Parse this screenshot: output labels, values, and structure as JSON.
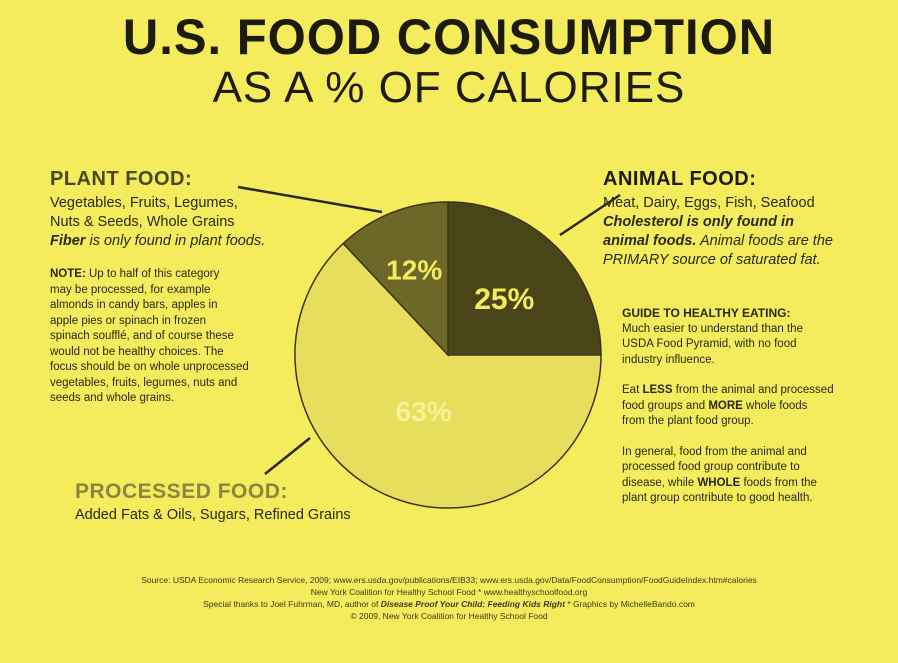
{
  "title": {
    "line1": "U.S. FOOD CONSUMPTION",
    "line2": "AS A % OF CALORIES"
  },
  "plant": {
    "heading": "PLANT FOOD:",
    "line1": "Vegetables, Fruits, Legumes,",
    "line2": "Nuts & Seeds, Whole Grains",
    "fiber_bold": "Fiber",
    "fiber_rest": " is only found in plant foods.",
    "note_label": "NOTE:",
    "note_lines": [
      " Up to half of this category",
      "may be processed, for example",
      "almonds in candy bars, apples in",
      "apple pies or spinach in frozen",
      "spinach soufflé, and of course these",
      "would not be healthy choices. The",
      "focus should be on whole unprocessed",
      "vegetables, fruits, legumes, nuts and",
      "seeds and whole grains."
    ]
  },
  "animal": {
    "heading": "ANIMAL FOOD:",
    "line1": "Meat, Dairy, Eggs, Fish, Seafood",
    "chol_bold": "Cholesterol",
    "chol_rest": " is only found in",
    "line3": "animal foods.",
    "line3_rest": " Animal foods are the",
    "line4": "PRIMARY source of saturated fat."
  },
  "guide": {
    "heading": "GUIDE TO HEALTHY EATING:",
    "p1": [
      "Much easier to understand than the",
      "USDA Food Pyramid, with no food",
      "industry influence."
    ],
    "p2_a": "Eat ",
    "p2_less": "LESS",
    "p2_b": " from the animal and processed",
    "p2_c": "food groups and ",
    "p2_more": "MORE",
    "p2_d": " whole foods",
    "p2_e": "from the plant food group.",
    "p3_lines": [
      "In general, food from the animal and",
      "processed food group contribute to"
    ],
    "p3_c": "disease, while ",
    "p3_whole": "WHOLE",
    "p3_d": " foods from the",
    "p3_e": "plant group contribute to good health."
  },
  "processed": {
    "heading": "PROCESSED FOOD:",
    "line1": "Added Fats & Oils, Sugars, Refined Grains"
  },
  "source": {
    "line1": "Source: USDA Economic Research Service, 2009; www.ers.usda.gov/publications/EIB33; www.ers.usda.gov/Data/FoodConsumption/FoodGuideIndex.htm#calories",
    "line2": "New York Coalition for Healthy School Food * www.healthyschoolfood.org",
    "line3_a": "Special thanks to Joel Fuhrman, MD, author of ",
    "line3_book": "Disease Proof Your Child: Feeding Kids Right",
    "line3_b": " * Graphics by MichelleBando.com",
    "line4": "© 2009, New York Coalition for Healthy School Food"
  },
  "chart_data": {
    "type": "pie",
    "title": "U.S. FOOD CONSUMPTION AS A % OF CALORIES",
    "categories": [
      "Animal Food",
      "Processed Food",
      "Plant Food"
    ],
    "values": [
      25,
      63,
      12
    ],
    "labels": [
      "25%",
      "63%",
      "12%"
    ],
    "colors": [
      "#4a4519",
      "#e6de5c",
      "#6e6828"
    ],
    "label_colors": [
      "#f4ec5c",
      "#f7f29a",
      "#f4ec5c"
    ]
  }
}
